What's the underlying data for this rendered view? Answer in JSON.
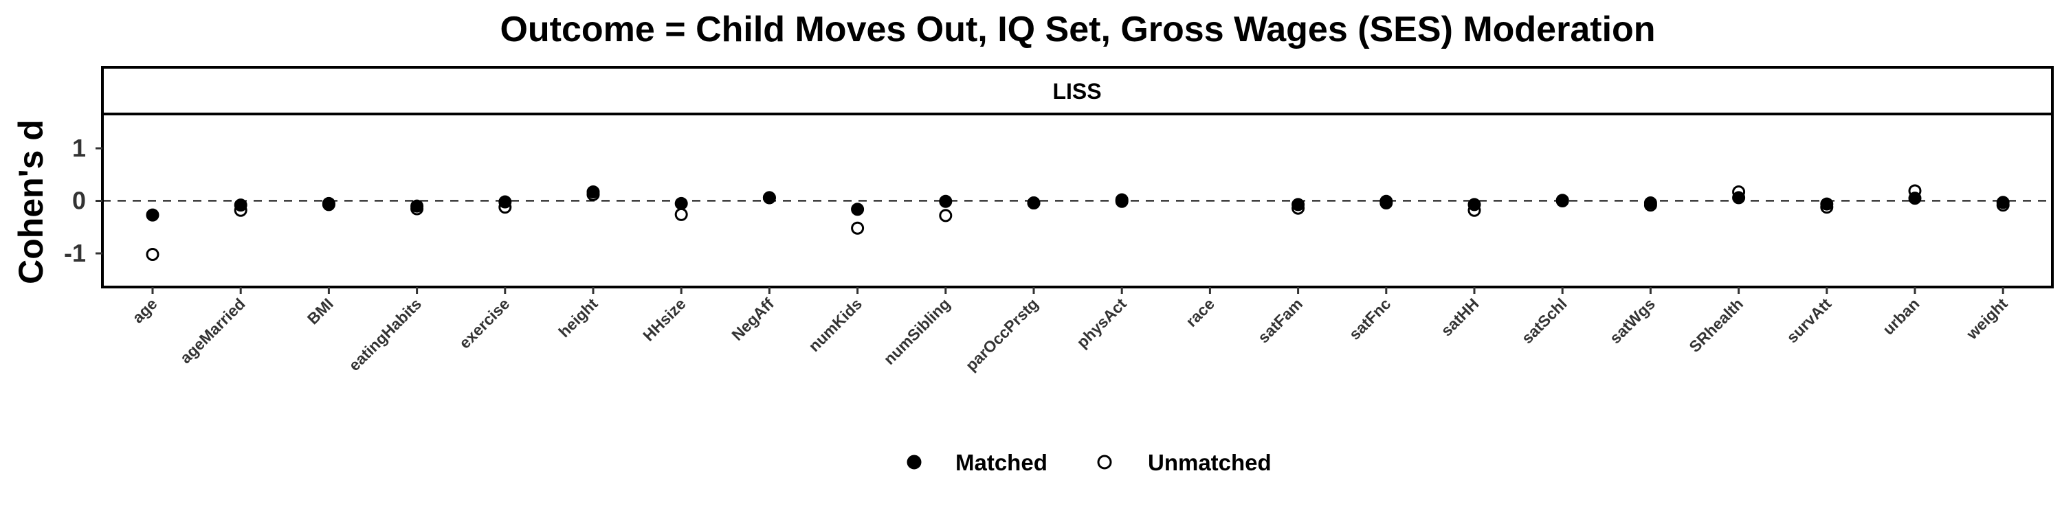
{
  "chart_data": {
    "type": "scatter",
    "title": "Outcome = Child Moves Out, IQ Set, Gross Wages (SES) Moderation",
    "facet_label": "LISS",
    "xlabel": "",
    "ylabel": "Cohen's d",
    "ylim": [
      -1.65,
      1.65
    ],
    "yticks": [
      1,
      0,
      -1
    ],
    "ytick_labels": [
      "1",
      "0",
      "-1"
    ],
    "reference_line": 0,
    "categories": [
      "age",
      "ageMarried",
      "BMI",
      "eatingHabits",
      "exercise",
      "height",
      "HHsize",
      "NegAff",
      "numKids",
      "numSibling",
      "parOccPrstg",
      "physAct",
      "race",
      "satFam",
      "satFnc",
      "satHH",
      "satSchl",
      "satWgs",
      "SRhealth",
      "survAtt",
      "urban",
      "weight"
    ],
    "series": [
      {
        "name": "Matched",
        "marker": "filled-circle",
        "values": [
          -0.27,
          -0.08,
          -0.05,
          -0.1,
          -0.02,
          0.17,
          -0.05,
          0.06,
          -0.16,
          -0.01,
          -0.04,
          -0.01,
          null,
          -0.07,
          -0.01,
          -0.07,
          0.0,
          -0.04,
          0.06,
          -0.06,
          0.05,
          -0.03
        ]
      },
      {
        "name": "Unmatched",
        "marker": "open-circle",
        "values": [
          -1.02,
          -0.18,
          -0.07,
          -0.15,
          -0.12,
          0.12,
          -0.26,
          0.06,
          -0.52,
          -0.28,
          -0.04,
          0.02,
          null,
          -0.14,
          -0.04,
          -0.18,
          0.01,
          -0.08,
          0.17,
          -0.12,
          0.19,
          -0.08
        ]
      }
    ],
    "grid": false,
    "legend_position": "bottom",
    "colors": {
      "point": "#000000",
      "open_fill": "#ffffff",
      "axis": "#000000",
      "tick_text": "#333333"
    }
  }
}
